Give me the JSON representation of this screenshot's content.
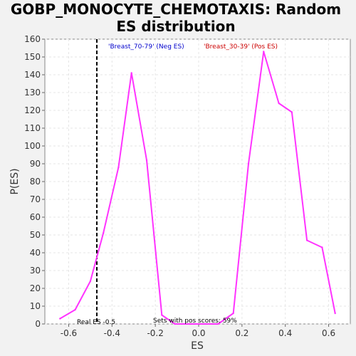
{
  "chart_data": {
    "type": "line",
    "title": "GOBP_MONOCYTE_CHEMOTAXIS: Random ES distribution",
    "title_lines": [
      "GOBP_MONOCYTE_CHEMOTAXIS: Random",
      "ES distribution"
    ],
    "xlabel": "ES",
    "ylabel": "P(ES)",
    "xlim": [
      -0.71,
      0.7
    ],
    "ylim": [
      0,
      160
    ],
    "xticks": [
      -0.6,
      -0.4,
      -0.2,
      0.0,
      0.2,
      0.4,
      0.6
    ],
    "xtick_labels": [
      "-0.6",
      "-0.4",
      "-0.2",
      "0.0",
      "0.2",
      "0.4",
      "0.6"
    ],
    "yticks": [
      0,
      10,
      20,
      30,
      40,
      50,
      60,
      70,
      80,
      90,
      100,
      110,
      120,
      130,
      140,
      150,
      160
    ],
    "ytick_labels": [
      "0",
      "10",
      "20",
      "30",
      "40",
      "50",
      "60",
      "70",
      "80",
      "90",
      "100",
      "110",
      "120",
      "130",
      "140",
      "150",
      "160"
    ],
    "grid": true,
    "series": [
      {
        "color": "#ff33ff",
        "x": [
          -0.64,
          -0.57,
          -0.5,
          -0.44,
          -0.37,
          -0.31,
          -0.24,
          -0.17,
          -0.11,
          -0.04,
          0.03,
          0.09,
          0.16,
          0.23,
          0.3,
          0.37,
          0.43,
          0.5,
          0.57,
          0.63
        ],
        "y": [
          3,
          8,
          24,
          51,
          88,
          141,
          92,
          5,
          0,
          0,
          0,
          0,
          6,
          90,
          153,
          124,
          119,
          47,
          43,
          6
        ]
      }
    ],
    "vline": {
      "x": -0.47,
      "style": "dashed",
      "color": "#000000"
    },
    "legend": [
      {
        "label": "'Breast_70-79' (Neg ES)",
        "color": "#0000cc"
      },
      {
        "label": "'Breast_30-39' (Pos ES)",
        "color": "#cc0000"
      }
    ],
    "annotations": [
      {
        "text": "Real ES -0.5",
        "x": -0.47,
        "y": 0
      },
      {
        "text": "Sets with pos scores: 59%",
        "x": 0.0,
        "y": 0
      }
    ]
  }
}
